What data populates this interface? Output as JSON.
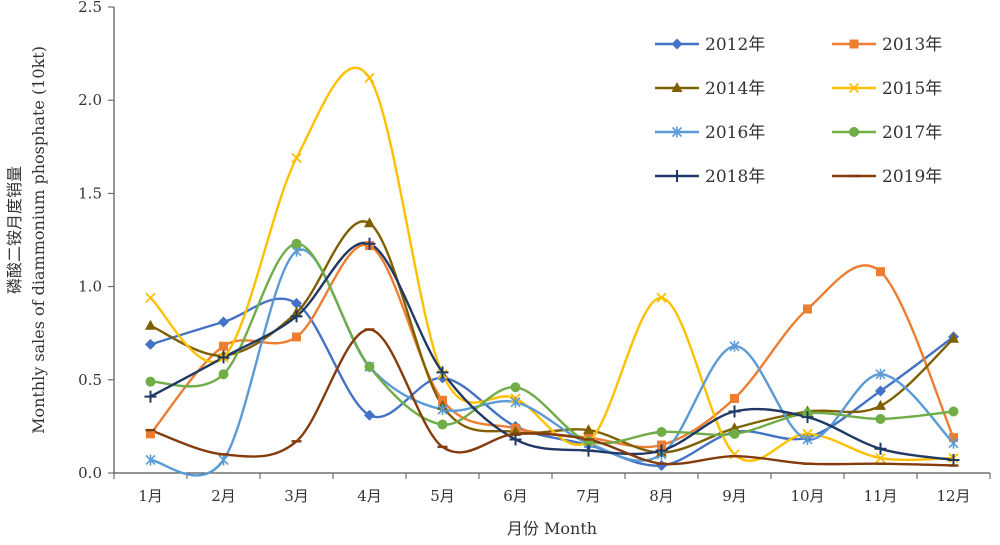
{
  "chart_data": {
    "type": "line",
    "title": "",
    "xlabel": "月份 Month",
    "ylabel_line1": "磷酸二铵月度销量",
    "ylabel_line2": "Monthly sales of diammonium phosphate (10kt)",
    "categories": [
      "1月",
      "2月",
      "3月",
      "4月",
      "5月",
      "6月",
      "7月",
      "8月",
      "9月",
      "10月",
      "11月",
      "12月"
    ],
    "ylim": [
      0,
      2.5
    ],
    "yticks": [
      "0.0",
      "0.5",
      "1.0",
      "1.5",
      "2.0",
      "2.5"
    ],
    "grid": false,
    "legend_position": "top-right",
    "series": [
      {
        "name": "2012年",
        "color": "#4472C4",
        "marker": "diamond",
        "values": [
          0.69,
          0.81,
          0.91,
          0.31,
          0.51,
          0.25,
          0.15,
          0.04,
          0.22,
          0.19,
          0.44,
          0.73
        ]
      },
      {
        "name": "2013年",
        "color": "#ED7D31",
        "marker": "square",
        "values": [
          0.21,
          0.68,
          0.73,
          1.22,
          0.39,
          0.24,
          0.19,
          0.15,
          0.4,
          0.88,
          1.08,
          0.19
        ]
      },
      {
        "name": "2014年",
        "color": "#7F6000",
        "marker": "triangle",
        "values": [
          0.79,
          0.63,
          0.86,
          1.34,
          0.36,
          0.22,
          0.23,
          0.11,
          0.24,
          0.33,
          0.36,
          0.72
        ]
      },
      {
        "name": "2015年",
        "color": "#FFC000",
        "marker": "x",
        "values": [
          0.94,
          0.62,
          1.69,
          2.12,
          0.53,
          0.4,
          0.17,
          0.94,
          0.1,
          0.21,
          0.08,
          0.08
        ]
      },
      {
        "name": "2016年",
        "color": "#5B9BD5",
        "marker": "star",
        "values": [
          0.07,
          0.07,
          1.19,
          0.57,
          0.34,
          0.38,
          0.16,
          0.1,
          0.68,
          0.18,
          0.53,
          0.16
        ]
      },
      {
        "name": "2017年",
        "color": "#70AD47",
        "marker": "circle",
        "values": [
          0.49,
          0.53,
          1.23,
          0.57,
          0.26,
          0.46,
          0.17,
          0.22,
          0.21,
          0.32,
          0.29,
          0.33
        ]
      },
      {
        "name": "2018年",
        "color": "#203864",
        "marker": "plus",
        "values": [
          0.41,
          0.62,
          0.84,
          1.23,
          0.54,
          0.18,
          0.12,
          0.12,
          0.33,
          0.3,
          0.13,
          0.07
        ]
      },
      {
        "name": "2019年",
        "color": "#843C0C",
        "marker": "dash",
        "values": [
          0.23,
          0.1,
          0.17,
          0.77,
          0.14,
          0.21,
          0.18,
          0.05,
          0.09,
          0.05,
          0.05,
          0.04
        ]
      }
    ]
  }
}
